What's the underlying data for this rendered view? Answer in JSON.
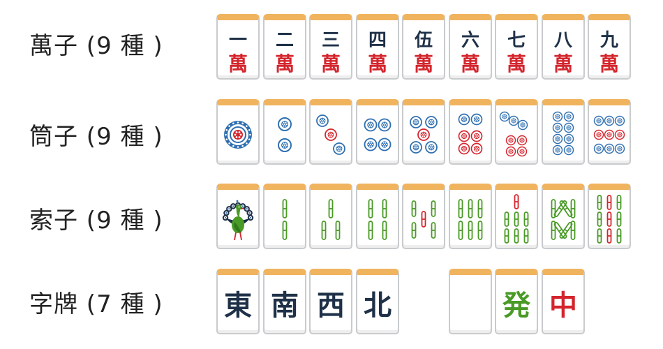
{
  "rows": [
    {
      "label": "萬子 (9 種 )",
      "kind": "man",
      "tiles": [
        {
          "rank": "一",
          "suit": "萬"
        },
        {
          "rank": "二",
          "suit": "萬"
        },
        {
          "rank": "三",
          "suit": "萬"
        },
        {
          "rank": "四",
          "suit": "萬"
        },
        {
          "rank": "伍",
          "suit": "萬"
        },
        {
          "rank": "六",
          "suit": "萬"
        },
        {
          "rank": "七",
          "suit": "萬"
        },
        {
          "rank": "八",
          "suit": "萬"
        },
        {
          "rank": "九",
          "suit": "萬"
        }
      ]
    },
    {
      "label": "筒子 (9 種 )",
      "kind": "pin",
      "tiles": [
        1,
        2,
        3,
        4,
        5,
        6,
        7,
        8,
        9
      ]
    },
    {
      "label": "索子 (9 種 )",
      "kind": "sou",
      "tiles": [
        1,
        2,
        3,
        4,
        5,
        6,
        7,
        8,
        9
      ]
    },
    {
      "label": "字牌 (7 種 )",
      "kind": "honor",
      "tiles": [
        {
          "char": "東",
          "color": "#1f3148",
          "name": "east-tile"
        },
        {
          "char": "南",
          "color": "#1f3148",
          "name": "south-tile"
        },
        {
          "char": "西",
          "color": "#1f3148",
          "name": "west-tile"
        },
        {
          "char": "北",
          "color": "#1f3148",
          "name": "north-tile"
        },
        {
          "char": "",
          "color": "#1f3148",
          "name": "white-dragon-tile"
        },
        {
          "char": "発",
          "color": "#4a9a26",
          "name": "green-dragon-tile"
        },
        {
          "char": "中",
          "color": "#d4252d",
          "name": "red-dragon-tile"
        }
      ]
    }
  ],
  "colors": {
    "navy": "#1f3148",
    "red": "#d4252d",
    "blue": "#2f6fb0",
    "green": "#4a9a26",
    "tile_top": "#f0b35e",
    "tile_border": "#c9cbcd"
  },
  "icons": {
    "sou_one": "peacock-icon",
    "pin_circle": "circle-dot-icon",
    "sou_stick": "bamboo-stick-icon"
  }
}
